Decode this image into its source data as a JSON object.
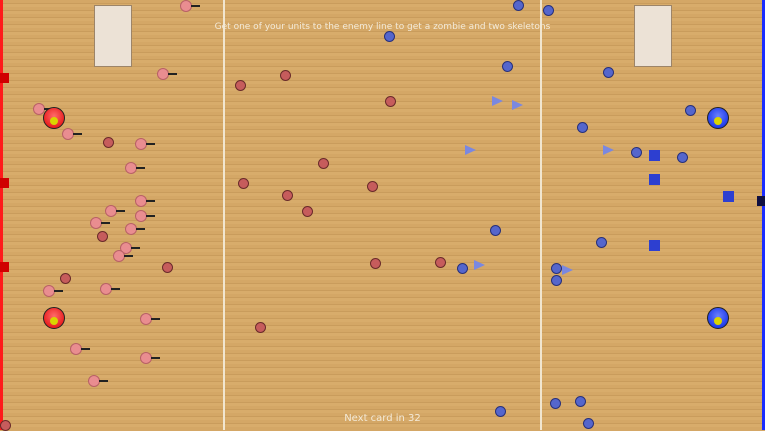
{
  "hud": {
    "objective": "Get one of your units to the enemy line to get a zombie and two skeletons",
    "next_card": "Next card in 32"
  },
  "teams": {
    "red": {
      "color": "#ff1a1a"
    },
    "blue": {
      "color": "#1a2cff"
    }
  },
  "field": {
    "color": "#d4a766"
  },
  "icons": {
    "red_unit": "spear-pawn-icon",
    "red_shield": "shield-ball-icon",
    "blue_unit": "ball-icon",
    "blue_arrow": "arrow-icon",
    "blue_square": "block-icon",
    "base": "king-icon"
  }
}
